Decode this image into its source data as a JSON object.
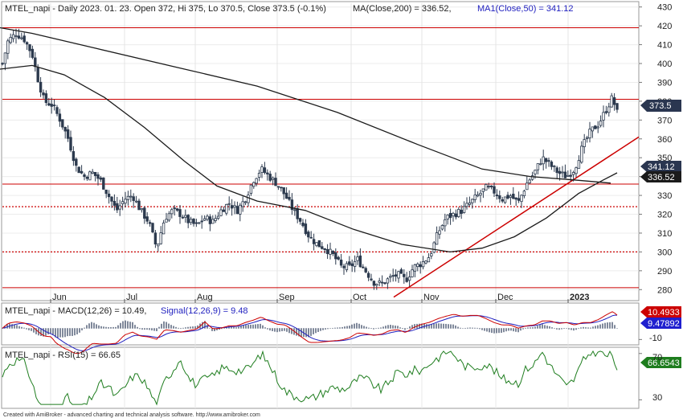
{
  "chart_data": [
    {
      "type": "candlestick",
      "header": {
        "title": "MTEL_napi - Daily 2023. 01. 23. Open 372, Hi 375, Lo 370.5, Close 373.5 (-0.1%)",
        "ma200": "MA(Close,200) = 336.52,",
        "ma50": "MA1(Close,50) = 341.12"
      },
      "ylim": [
        275,
        432
      ],
      "y_ticks": [
        "430",
        "420",
        "410",
        "400",
        "390",
        "380",
        "370",
        "360",
        "350",
        "340",
        "330",
        "320",
        "310",
        "300",
        "290",
        "280"
      ],
      "x_ticks": [
        "Jun",
        "Jul",
        "Aug",
        "Sep",
        "Oct",
        "Nov",
        "Dec",
        "2023"
      ],
      "tags": {
        "last": "373.5",
        "ma50": "341.12",
        "ma200": "336.52"
      },
      "last_close": 373.5,
      "ma50_value": 341.12,
      "ma200_value": 336.52,
      "hlines_solid": [
        419,
        381,
        336,
        281
      ],
      "hlines_dotted": [
        324,
        300
      ],
      "trendline": {
        "from": [
          "Oct 18",
          276
        ],
        "to": [
          "Jan 31",
          360
        ]
      },
      "ma200_path": [
        [
          0,
          419
        ],
        [
          40,
          416
        ],
        [
          120,
          408
        ],
        [
          220,
          398
        ],
        [
          320,
          388
        ],
        [
          420,
          374
        ],
        [
          520,
          357
        ],
        [
          600,
          344
        ],
        [
          660,
          340
        ],
        [
          720,
          338
        ],
        [
          760,
          336.5
        ]
      ],
      "ma50_path": [
        [
          0,
          397
        ],
        [
          40,
          399
        ],
        [
          80,
          394
        ],
        [
          130,
          382
        ],
        [
          180,
          366
        ],
        [
          230,
          348
        ],
        [
          270,
          335
        ],
        [
          320,
          327
        ],
        [
          380,
          322
        ],
        [
          440,
          312
        ],
        [
          500,
          304
        ],
        [
          560,
          300
        ],
        [
          600,
          302
        ],
        [
          640,
          308
        ],
        [
          680,
          318
        ],
        [
          720,
          331
        ],
        [
          750,
          338
        ],
        [
          768,
          342
        ]
      ],
      "price_path": [
        [
          3,
          400
        ],
        [
          10,
          412
        ],
        [
          20,
          416
        ],
        [
          30,
          413
        ],
        [
          40,
          405
        ],
        [
          47,
          392
        ],
        [
          55,
          380
        ],
        [
          65,
          378
        ],
        [
          75,
          370
        ],
        [
          85,
          360
        ],
        [
          95,
          345
        ],
        [
          105,
          340
        ],
        [
          115,
          342
        ],
        [
          125,
          338
        ],
        [
          135,
          330
        ],
        [
          145,
          322
        ],
        [
          155,
          328
        ],
        [
          165,
          330
        ],
        [
          175,
          322
        ],
        [
          185,
          316
        ],
        [
          195,
          302
        ],
        [
          205,
          318
        ],
        [
          215,
          322
        ],
        [
          225,
          320
        ],
        [
          235,
          316
        ],
        [
          245,
          314
        ],
        [
          255,
          318
        ],
        [
          265,
          316
        ],
        [
          275,
          322
        ],
        [
          285,
          326
        ],
        [
          295,
          322
        ],
        [
          305,
          328
        ],
        [
          315,
          338
        ],
        [
          325,
          344
        ],
        [
          335,
          340
        ],
        [
          345,
          336
        ],
        [
          355,
          330
        ],
        [
          365,
          322
        ],
        [
          375,
          316
        ],
        [
          385,
          308
        ],
        [
          395,
          304
        ],
        [
          405,
          302
        ],
        [
          415,
          298
        ],
        [
          425,
          292
        ],
        [
          435,
          292
        ],
        [
          445,
          296
        ],
        [
          455,
          290
        ],
        [
          465,
          284
        ],
        [
          475,
          283
        ],
        [
          485,
          286
        ],
        [
          495,
          288
        ],
        [
          505,
          285
        ],
        [
          515,
          292
        ],
        [
          525,
          294
        ],
        [
          535,
          298
        ],
        [
          545,
          310
        ],
        [
          555,
          318
        ],
        [
          565,
          320
        ],
        [
          575,
          322
        ],
        [
          585,
          326
        ],
        [
          595,
          330
        ],
        [
          605,
          334
        ],
        [
          615,
          332
        ],
        [
          625,
          328
        ],
        [
          635,
          330
        ],
        [
          645,
          326
        ],
        [
          655,
          336
        ],
        [
          665,
          342
        ],
        [
          675,
          350
        ],
        [
          685,
          346
        ],
        [
          695,
          342
        ],
        [
          705,
          340
        ],
        [
          715,
          344
        ],
        [
          725,
          356
        ],
        [
          735,
          364
        ],
        [
          745,
          368
        ],
        [
          755,
          376
        ],
        [
          762,
          382
        ],
        [
          768,
          374
        ]
      ],
      "macd": {
        "label": "MTEL_napi - MACD(12,26) = 10.49,",
        "signal_label": "Signal(12,26,9) = 9.48",
        "value": 10.49,
        "signal": 9.48,
        "tag_macd": "10.4933",
        "tag_signal": "9.47892",
        "y_ticks": [
          "-10"
        ]
      },
      "rsi": {
        "label": "MTEL_napi - RSI(15) = 66.65",
        "value": 66.65,
        "tag": "66.6543",
        "y_ticks": [
          "70",
          "30"
        ]
      },
      "footer": "Created with AmiBroker - advanced charting and technical analysis software. http://www.amibroker.com"
    }
  ],
  "colors": {
    "red": "#cc0000",
    "blue": "#1f1fbf",
    "green": "#1e7d1e",
    "dark": "#1b1b1b",
    "candle": "#2c3a4e"
  }
}
